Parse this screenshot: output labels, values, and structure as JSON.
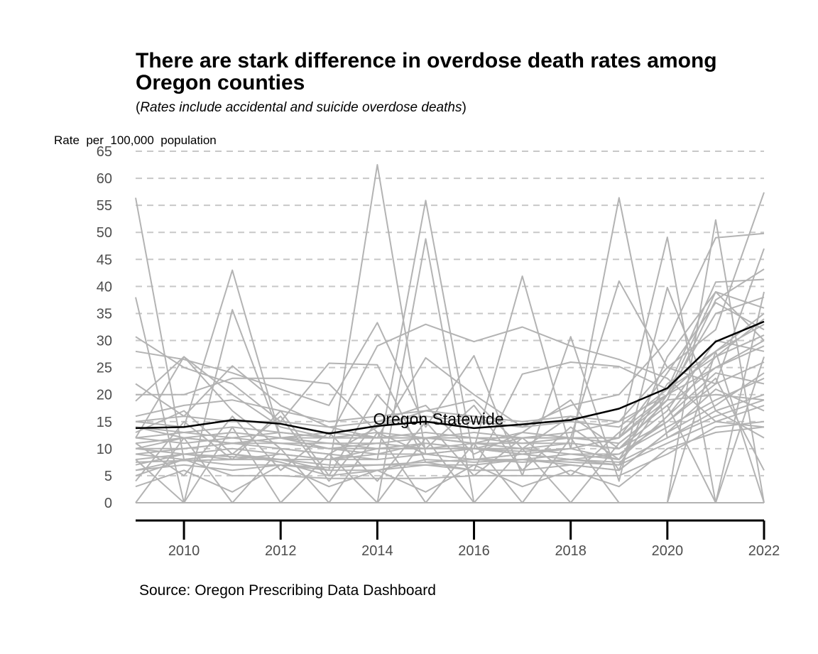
{
  "chart_data": {
    "type": "line",
    "title": "There are stark difference in overdose death rates among Oregon counties",
    "subtitle_parts": [
      "(",
      "Rates include accidental and suicide overdose deaths",
      ")"
    ],
    "ylabel": "Rate  per  100,000  population",
    "source": "Source: Oregon Prescribing Data Dashboard",
    "ylim": [
      0,
      65
    ],
    "xlim": [
      2009,
      2022
    ],
    "y_ticks": [
      0,
      5,
      10,
      15,
      20,
      25,
      30,
      35,
      40,
      45,
      50,
      55,
      60,
      65
    ],
    "x_ticks": [
      2010,
      2012,
      2014,
      2016,
      2018,
      2020,
      2022
    ],
    "grid": "horizontal dashed",
    "colors": {
      "highlight": "#000000",
      "counties": "#b3b3b3",
      "grid": "#c8c8c8"
    },
    "x": [
      2009,
      2010,
      2011,
      2012,
      2013,
      2014,
      2015,
      2016,
      2017,
      2018,
      2019,
      2020,
      2021,
      2022
    ],
    "highlight": {
      "name": "Oregon Statewide",
      "label_x": 2016,
      "values": [
        13.8,
        14.0,
        15.3,
        14.6,
        12.8,
        14.2,
        15.0,
        13.8,
        14.5,
        15.3,
        17.4,
        21.2,
        29.8,
        33.5
      ]
    },
    "county_series": [
      [
        56.4,
        8.0,
        9.0,
        7.5,
        5.0,
        6.0,
        8.0,
        7.5,
        8.0,
        7.0,
        6.0,
        13.0,
        18.0,
        24.0
      ],
      [
        8.0,
        9.0,
        8.5,
        8.0,
        6.0,
        62.5,
        9.0,
        10.0,
        9.0,
        10.0,
        56.4,
        12.0,
        17.0,
        20.0
      ],
      [
        10.0,
        12.0,
        11.0,
        10.0,
        9.0,
        8.0,
        55.9,
        8.0,
        9.0,
        8.0,
        7.0,
        20.0,
        25.0,
        30.0
      ],
      [
        15.0,
        14.0,
        43.0,
        12.0,
        10.0,
        11.0,
        10.0,
        10.0,
        9.5,
        10.0,
        12.0,
        20.0,
        28.0,
        35.0
      ],
      [
        0.0,
        0.0,
        0.0,
        0.0,
        0.0,
        0.0,
        48.8,
        0.0,
        0.0,
        0.0,
        0.0,
        0.0,
        52.3,
        0.0
      ],
      [
        10.0,
        9.0,
        10.0,
        9.0,
        8.0,
        10.0,
        11.0,
        10.0,
        41.9,
        10.0,
        12.0,
        49.1,
        0.0,
        39.0
      ],
      [
        38.0,
        0.0,
        35.7,
        12.0,
        13.0,
        12.0,
        12.0,
        11.0,
        13.0,
        12.0,
        41.0,
        25.0,
        22.0,
        47.0
      ],
      [
        12.0,
        27.0,
        20.0,
        14.0,
        12.0,
        29.0,
        33.0,
        29.8,
        32.5,
        29.0,
        26.5,
        23.0,
        15.0,
        14.0
      ],
      [
        20.0,
        20.0,
        23.0,
        23.0,
        22.0,
        13.0,
        9.0,
        10.0,
        12.0,
        13.0,
        15.0,
        25.0,
        32.0,
        57.4
      ],
      [
        30.7,
        25.0,
        22.0,
        15.0,
        25.8,
        25.5,
        7.5,
        6.0,
        23.8,
        26.0,
        25.2,
        21.0,
        40.8,
        41.3
      ],
      [
        28.0,
        26.5,
        24.0,
        21.0,
        18.0,
        33.3,
        14.0,
        27.2,
        5.0,
        30.7,
        4.0,
        39.8,
        17.0,
        12.0
      ],
      [
        22.0,
        16.0,
        25.3,
        18.0,
        14.0,
        12.0,
        26.8,
        20.0,
        14.0,
        18.0,
        20.0,
        30.0,
        49.0,
        49.8
      ],
      [
        18.8,
        27.0,
        17.0,
        10.0,
        9.0,
        14.0,
        17.0,
        19.0,
        10.0,
        16.0,
        10.0,
        19.0,
        37.5,
        43.2
      ],
      [
        14.0,
        13.0,
        14.0,
        13.0,
        12.0,
        13.0,
        12.0,
        12.0,
        11.0,
        11.0,
        10.0,
        15.0,
        22.0,
        26.0
      ],
      [
        12.0,
        11.0,
        12.0,
        11.0,
        11.0,
        10.0,
        10.0,
        10.0,
        10.0,
        9.0,
        9.0,
        14.0,
        19.0,
        23.0
      ],
      [
        9.0,
        10.0,
        11.0,
        12.0,
        10.0,
        9.0,
        11.0,
        10.0,
        9.0,
        10.0,
        8.0,
        16.0,
        27.0,
        31.0
      ],
      [
        7.5,
        7.8,
        8.0,
        8.0,
        7.0,
        7.0,
        7.5,
        8.0,
        7.5,
        8.0,
        7.5,
        12.0,
        16.0,
        19.0
      ],
      [
        6.0,
        8.0,
        7.0,
        7.0,
        6.5,
        7.0,
        7.0,
        7.0,
        8.0,
        7.5,
        7.0,
        11.0,
        15.0,
        18.0
      ],
      [
        4.0,
        15.0,
        8.0,
        17.0,
        5.0,
        20.0,
        10.0,
        18.0,
        6.0,
        14.0,
        8.0,
        22.0,
        28.0,
        33.0
      ],
      [
        11.0,
        5.0,
        16.0,
        6.0,
        13.0,
        4.0,
        15.0,
        5.0,
        12.0,
        5.0,
        13.0,
        20.0,
        35.0,
        38.0
      ],
      [
        13.0,
        17.0,
        9.0,
        16.0,
        4.0,
        15.0,
        18.0,
        9.0,
        13.0,
        19.0,
        6.0,
        27.0,
        39.0,
        36.0
      ],
      [
        8.0,
        0.0,
        14.0,
        0.0,
        9.0,
        0.0,
        12.0,
        0.0,
        10.0,
        0.0,
        11.0,
        18.0,
        0.0,
        27.0
      ],
      [
        0.0,
        12.0,
        0.0,
        10.0,
        0.0,
        13.0,
        0.0,
        11.0,
        0.0,
        12.0,
        0.0,
        0.0,
        28.0,
        0.0
      ],
      [
        5.0,
        8.0,
        5.0,
        5.0,
        4.5,
        4.5,
        4.5,
        5.0,
        5.0,
        5.0,
        5.0,
        9.0,
        14.0,
        15.0
      ],
      [
        3.0,
        6.0,
        2.0,
        7.0,
        3.0,
        6.0,
        2.0,
        7.0,
        3.0,
        6.0,
        3.0,
        10.0,
        13.0,
        14.0
      ],
      [
        16.0,
        18.0,
        19.0,
        17.0,
        15.0,
        16.0,
        17.0,
        16.0,
        15.0,
        16.0,
        15.0,
        20.0,
        39.0,
        30.0
      ],
      [
        14.0,
        12.0,
        13.0,
        12.0,
        12.0,
        12.0,
        13.0,
        12.0,
        12.0,
        12.0,
        12.0,
        24.0,
        37.0,
        32.0
      ],
      [
        10.0,
        10.0,
        11.0,
        11.0,
        10.0,
        10.0,
        10.0,
        11.0,
        10.0,
        11.0,
        10.0,
        17.0,
        30.0,
        28.0
      ],
      [
        12.0,
        13.0,
        12.0,
        13.0,
        12.0,
        12.0,
        12.0,
        13.0,
        12.0,
        12.0,
        12.0,
        19.0,
        20.0,
        19.0
      ],
      [
        9.0,
        8.0,
        9.0,
        8.0,
        8.0,
        9.0,
        9.0,
        8.0,
        8.0,
        9.0,
        8.0,
        16.0,
        24.0,
        22.0
      ],
      [
        7.0,
        9.0,
        8.0,
        9.0,
        8.0,
        8.0,
        9.0,
        8.0,
        9.0,
        8.0,
        9.0,
        15.0,
        23.0,
        6.0
      ],
      [
        15.0,
        16.0,
        15.0,
        15.0,
        14.0,
        15.0,
        16.0,
        15.0,
        14.0,
        15.0,
        14.0,
        21.0,
        27.0,
        34.0
      ],
      [
        11.0,
        12.0,
        11.0,
        12.0,
        11.0,
        11.0,
        12.0,
        11.0,
        11.0,
        12.0,
        11.0,
        18.0,
        25.0,
        29.0
      ],
      [
        6.0,
        7.0,
        6.0,
        7.0,
        6.0,
        6.0,
        7.0,
        6.0,
        6.0,
        7.0,
        6.0,
        13.0,
        21.0,
        17.0
      ],
      [
        0.0,
        0.0,
        0.0,
        0.0,
        0.0,
        0.0,
        0.0,
        0.0,
        0.0,
        0.0,
        0.0,
        0.0,
        0.0,
        0.0
      ]
    ]
  }
}
